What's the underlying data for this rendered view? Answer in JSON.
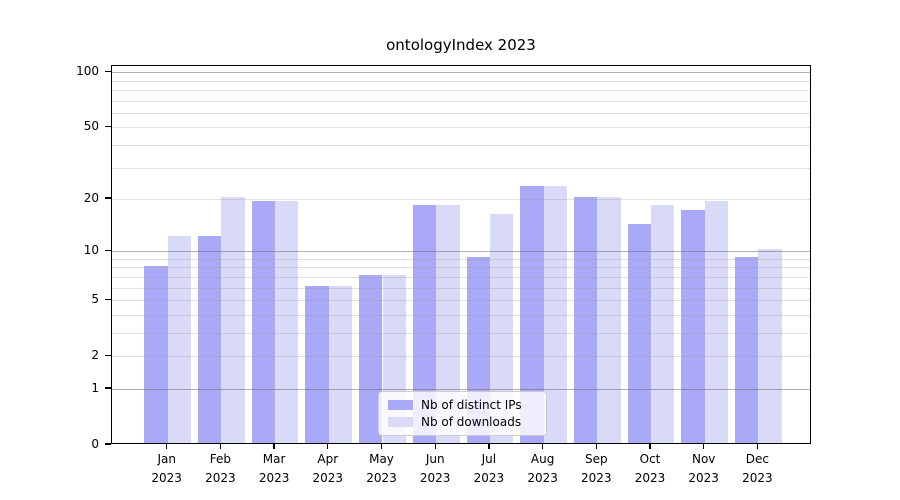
{
  "chart_data": {
    "type": "bar",
    "title": "ontologyIndex 2023",
    "categories": [
      "Jan",
      "Feb",
      "Mar",
      "Apr",
      "May",
      "Jun",
      "Jul",
      "Aug",
      "Sep",
      "Oct",
      "Nov",
      "Dec"
    ],
    "x_year": "2023",
    "series": [
      {
        "name": "Nb of distinct IPs",
        "color": "#a9a9f8",
        "values": [
          8,
          12,
          19,
          6,
          7,
          18,
          9,
          23,
          20,
          14,
          17,
          9
        ]
      },
      {
        "name": "Nb of downloads",
        "color": "#d9d9f8",
        "values": [
          12,
          20,
          19,
          6,
          7,
          18,
          16,
          23,
          20,
          18,
          19,
          10
        ]
      }
    ],
    "xlabel": "",
    "ylabel": "",
    "y_axis": {
      "scale": "log10(value+1)",
      "tick_values": [
        100,
        50,
        20,
        10,
        5,
        2,
        1,
        0
      ],
      "tick_labels": [
        "100",
        "50",
        "20",
        "10",
        "5",
        "2",
        "1",
        "0"
      ],
      "major_grid_values": [
        1,
        10,
        100
      ],
      "minor_grid_values": [
        2,
        3,
        4,
        5,
        6,
        7,
        8,
        9,
        20,
        30,
        40,
        50,
        60,
        70,
        80,
        90
      ],
      "ylim": [
        0,
        108
      ],
      "grid": "on"
    },
    "legend": {
      "position": "lower center",
      "entries": [
        "Nb of distinct IPs",
        "Nb of downloads"
      ]
    },
    "style_colors": {
      "frame": "#000000",
      "major_grid": "rgba(100,100,100,0.5)",
      "minor_grid": "rgba(160,160,160,0.32)",
      "text": "#000000"
    }
  }
}
